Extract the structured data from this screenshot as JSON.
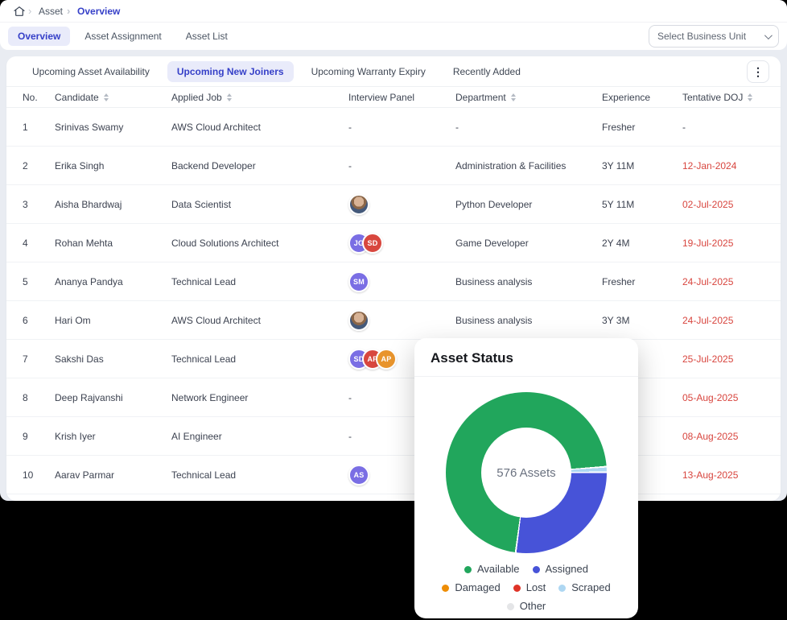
{
  "app": {
    "accent_color": "#3640c8",
    "background_color": "#e9ecf2",
    "overdue_color": "#d8453e"
  },
  "breadcrumb": {
    "items": [
      {
        "label": "Asset",
        "active": false
      },
      {
        "label": "Overview",
        "active": true
      }
    ]
  },
  "top_tabs": [
    {
      "label": "Overview",
      "active": true
    },
    {
      "label": "Asset Assignment",
      "active": false
    },
    {
      "label": "Asset List",
      "active": false
    }
  ],
  "business_unit_select": {
    "value": "Select Business Unit"
  },
  "subtabs": [
    {
      "label": "Upcoming Asset Availability",
      "active": false
    },
    {
      "label": "Upcoming New Joiners",
      "active": true
    },
    {
      "label": "Upcoming Warranty Expiry",
      "active": false
    },
    {
      "label": "Recently Added",
      "active": false
    }
  ],
  "icons": {
    "kebab": "⋮"
  },
  "table": {
    "columns": [
      {
        "label": "No.",
        "sortable": false
      },
      {
        "label": "Candidate",
        "sortable": true
      },
      {
        "label": "Applied Job",
        "sortable": true
      },
      {
        "label": "Interview Panel",
        "sortable": false
      },
      {
        "label": "Department",
        "sortable": true
      },
      {
        "label": "Experience",
        "sortable": false
      },
      {
        "label": "Tentative DOJ",
        "sortable": true
      }
    ],
    "rows": [
      {
        "no": "1",
        "candidate": "Srinivas Swamy",
        "applied_job": "AWS Cloud Architect",
        "panel": {
          "placeholder": "-",
          "avatars": []
        },
        "department": "-",
        "experience": "Fresher",
        "doj": "-",
        "doj_overdue": false
      },
      {
        "no": "2",
        "candidate": "Erika Singh",
        "applied_job": "Backend Developer",
        "panel": {
          "placeholder": "-",
          "avatars": []
        },
        "department": "Administration & Facilities",
        "experience": "3Y 11M",
        "doj": "12-Jan-2024",
        "doj_overdue": true
      },
      {
        "no": "3",
        "candidate": "Aisha Bhardwaj",
        "applied_job": "Data Scientist",
        "panel": {
          "placeholder": "",
          "avatars": [
            {
              "type": "photo",
              "text": ""
            }
          ]
        },
        "department": "Python Developer",
        "experience": "5Y 11M",
        "doj": "02-Jul-2025",
        "doj_overdue": true
      },
      {
        "no": "4",
        "candidate": "Rohan Mehta",
        "applied_job": "Cloud Solutions Architect",
        "panel": {
          "placeholder": "",
          "avatars": [
            {
              "type": "initials",
              "text": "JG",
              "color": "#7a6ee4"
            },
            {
              "type": "initials",
              "text": "SD",
              "color": "#d8473e"
            }
          ]
        },
        "department": "Game Developer",
        "experience": "2Y 4M",
        "doj": "19-Jul-2025",
        "doj_overdue": true
      },
      {
        "no": "5",
        "candidate": "Ananya Pandya",
        "applied_job": "Technical Lead",
        "panel": {
          "placeholder": "",
          "avatars": [
            {
              "type": "initials",
              "text": "SM",
              "color": "#7a6ee4"
            }
          ]
        },
        "department": "Business analysis",
        "experience": "Fresher",
        "doj": "24-Jul-2025",
        "doj_overdue": true
      },
      {
        "no": "6",
        "candidate": "Hari Om",
        "applied_job": "AWS Cloud Architect",
        "panel": {
          "placeholder": "",
          "avatars": [
            {
              "type": "photo",
              "text": ""
            }
          ]
        },
        "department": "Business analysis",
        "experience": "3Y 3M",
        "doj": "24-Jul-2025",
        "doj_overdue": true
      },
      {
        "no": "7",
        "candidate": "Sakshi Das",
        "applied_job": "Technical Lead",
        "panel": {
          "placeholder": "",
          "avatars": [
            {
              "type": "initials",
              "text": "SD",
              "color": "#7a6ee4"
            },
            {
              "type": "initials",
              "text": "AP",
              "color": "#d8473e"
            },
            {
              "type": "initials",
              "text": "AP",
              "color": "#e8942c"
            }
          ]
        },
        "department": "",
        "experience": "",
        "doj": "25-Jul-2025",
        "doj_overdue": true
      },
      {
        "no": "8",
        "candidate": "Deep Rajvanshi",
        "applied_job": "Network Engineer",
        "panel": {
          "placeholder": "-",
          "avatars": []
        },
        "department": "",
        "experience": "",
        "doj": "05-Aug-2025",
        "doj_overdue": true
      },
      {
        "no": "9",
        "candidate": "Krish Iyer",
        "applied_job": "AI Engineer",
        "panel": {
          "placeholder": "-",
          "avatars": []
        },
        "department": "",
        "experience": "",
        "doj": "08-Aug-2025",
        "doj_overdue": true
      },
      {
        "no": "10",
        "candidate": "Aarav Parmar",
        "applied_job": "Technical Lead",
        "panel": {
          "placeholder": "",
          "avatars": [
            {
              "type": "initials",
              "text": "AS",
              "color": "#7a6ee4"
            }
          ]
        },
        "department": "",
        "experience": "",
        "doj": "13-Aug-2025",
        "doj_overdue": true
      }
    ]
  },
  "asset_status_card": {
    "title": "Asset Status",
    "center_label": "576 Assets"
  },
  "chart_data": {
    "type": "pie",
    "title": "Asset Status",
    "center_label": "576 Assets",
    "total": 576,
    "legend_position": "bottom",
    "series": [
      {
        "name": "Available",
        "percent": 71.7,
        "value": 413,
        "color": "#21a65c"
      },
      {
        "name": "Assigned",
        "percent": 27.2,
        "value": 157,
        "color": "#4753d8"
      },
      {
        "name": "Damaged",
        "percent": 0,
        "value": 0,
        "color": "#ee8d06"
      },
      {
        "name": "Lost",
        "percent": 0,
        "value": 0,
        "color": "#df3327"
      },
      {
        "name": "Scraped",
        "percent": 1.1,
        "value": 6,
        "color": "#aed7f2"
      },
      {
        "name": "Other",
        "percent": 0,
        "value": 0,
        "color": "#e4e5e7"
      }
    ],
    "draw": {
      "start_deg": 187,
      "order": [
        "Available",
        "Scraped",
        "Assigned"
      ],
      "gap_deg": 1.2
    }
  }
}
